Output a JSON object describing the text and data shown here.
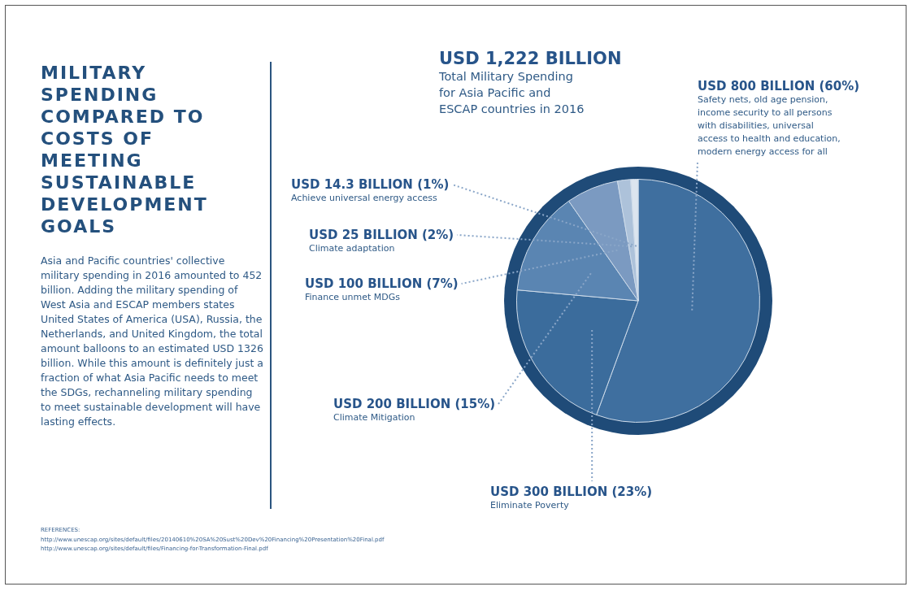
{
  "chart_data": {
    "type": "pie",
    "title": "MILITARY SPENDING COMPARED TO COSTS OF MEETING SUSTAINABLE DEVELOPMENT GOALS",
    "subtitle": "Asia and Pacific countries' collective military spending in 2016 amounted to 452 billion. Adding the military spending of West Asia and ESCAP members states United States of America (USA), Russia, the Netherlands, and United Kingdom, the total amount balloons to an estimated USD 1326 billion.   While this amount is definitely just a fraction of what Asia Pacific needs to meet the SDGs, rechanneling military spending to meet sustainable development will have lasting effects.",
    "categories": [
      "Safety nets, old age pension,\nincome security to all persons\nwith disabilities, universal\naccess to health and education,\nmodern energy access for all",
      "Eliminate Poverty",
      "Climate Mitigation",
      "Finance unmet MDGs",
      "Climate adaptation",
      "Achieve universal energy access"
    ],
    "values": [
      800,
      300,
      200,
      100,
      25,
      14.3
    ],
    "value_labels": [
      "USD 800 BILLION (60%)",
      "USD 300 BILLION (23%)",
      "USD 200 BILLION (15%)",
      "USD 100 BILLION (7%)",
      "USD 25 BILLION (2%)",
      "USD 14.3 BILLION (1%)"
    ],
    "colors": [
      "#3f6f9f",
      "#3b6c9c",
      "#5a85b2",
      "#7b9ac1",
      "#adc2da",
      "#dce5ef"
    ],
    "legend": false,
    "annotations": [
      "USD 1,222 BILLION\nTotal Military Spending\nfor Asia Pacific and\nESCAP countries in 2016",
      "REFERENCES:",
      "http://www.unescap.org/sites/default/files/20140610%20SA%20Sust%20Dev%20Financing%20Presentation%20Final.pdf",
      "http://www.unescap.org/sites/default/files/Financing-for-Transformation-Final.pdf"
    ]
  }
}
